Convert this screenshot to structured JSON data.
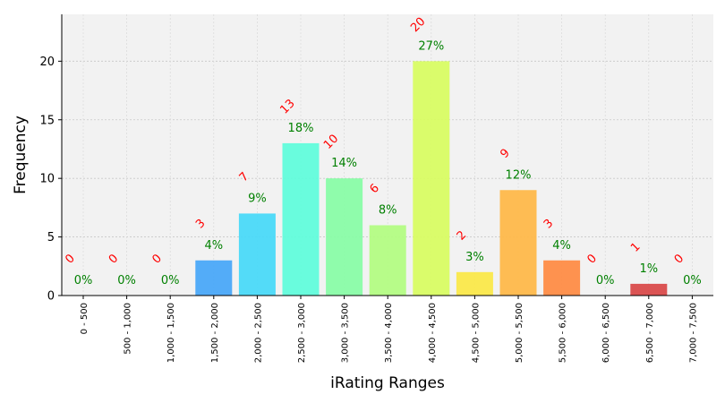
{
  "chart_data": {
    "type": "bar",
    "title": "",
    "xlabel": "iRating Ranges",
    "ylabel": "Frequency",
    "ylim": [
      0,
      24
    ],
    "yticks": [
      0,
      5,
      10,
      15,
      20
    ],
    "grid": true,
    "categories": [
      "0 - 500",
      "500 - 1,000",
      "1,000 - 1,500",
      "1,500 - 2,000",
      "2,000 - 2,500",
      "2,500 - 3,000",
      "3,000 - 3,500",
      "3,500 - 4,000",
      "4,000 - 4,500",
      "4,500 - 5,000",
      "5,000 - 5,500",
      "5,500 - 6,000",
      "6,000 - 6,500",
      "6,500 - 7,000",
      "7,000 - 7,500"
    ],
    "values": [
      0,
      0,
      0,
      3,
      7,
      13,
      10,
      6,
      20,
      2,
      9,
      3,
      0,
      1,
      0
    ],
    "percent_labels": [
      "0%",
      "0%",
      "0%",
      "4%",
      "9%",
      "18%",
      "14%",
      "8%",
      "27%",
      "3%",
      "12%",
      "4%",
      "0%",
      "1%",
      "0%"
    ],
    "count_labels": [
      "0",
      "0",
      "0",
      "3",
      "7",
      "13",
      "10",
      "6",
      "20",
      "2",
      "9",
      "3",
      "0",
      "1",
      "0"
    ],
    "colors": [
      "#4b0eb5",
      "#3e47d9",
      "#3471ec",
      "#4aa8f8",
      "#4ad9f8",
      "#61fcdb",
      "#89fca7",
      "#b3fc83",
      "#d8fc63",
      "#fae84a",
      "#feb84a",
      "#fe8c46",
      "#f55a2c",
      "#d94b4b",
      "#9e1c0c"
    ],
    "count_label_color": "#ff0000",
    "percent_label_color": "#008000",
    "plot_background": "#f2f2f2"
  }
}
